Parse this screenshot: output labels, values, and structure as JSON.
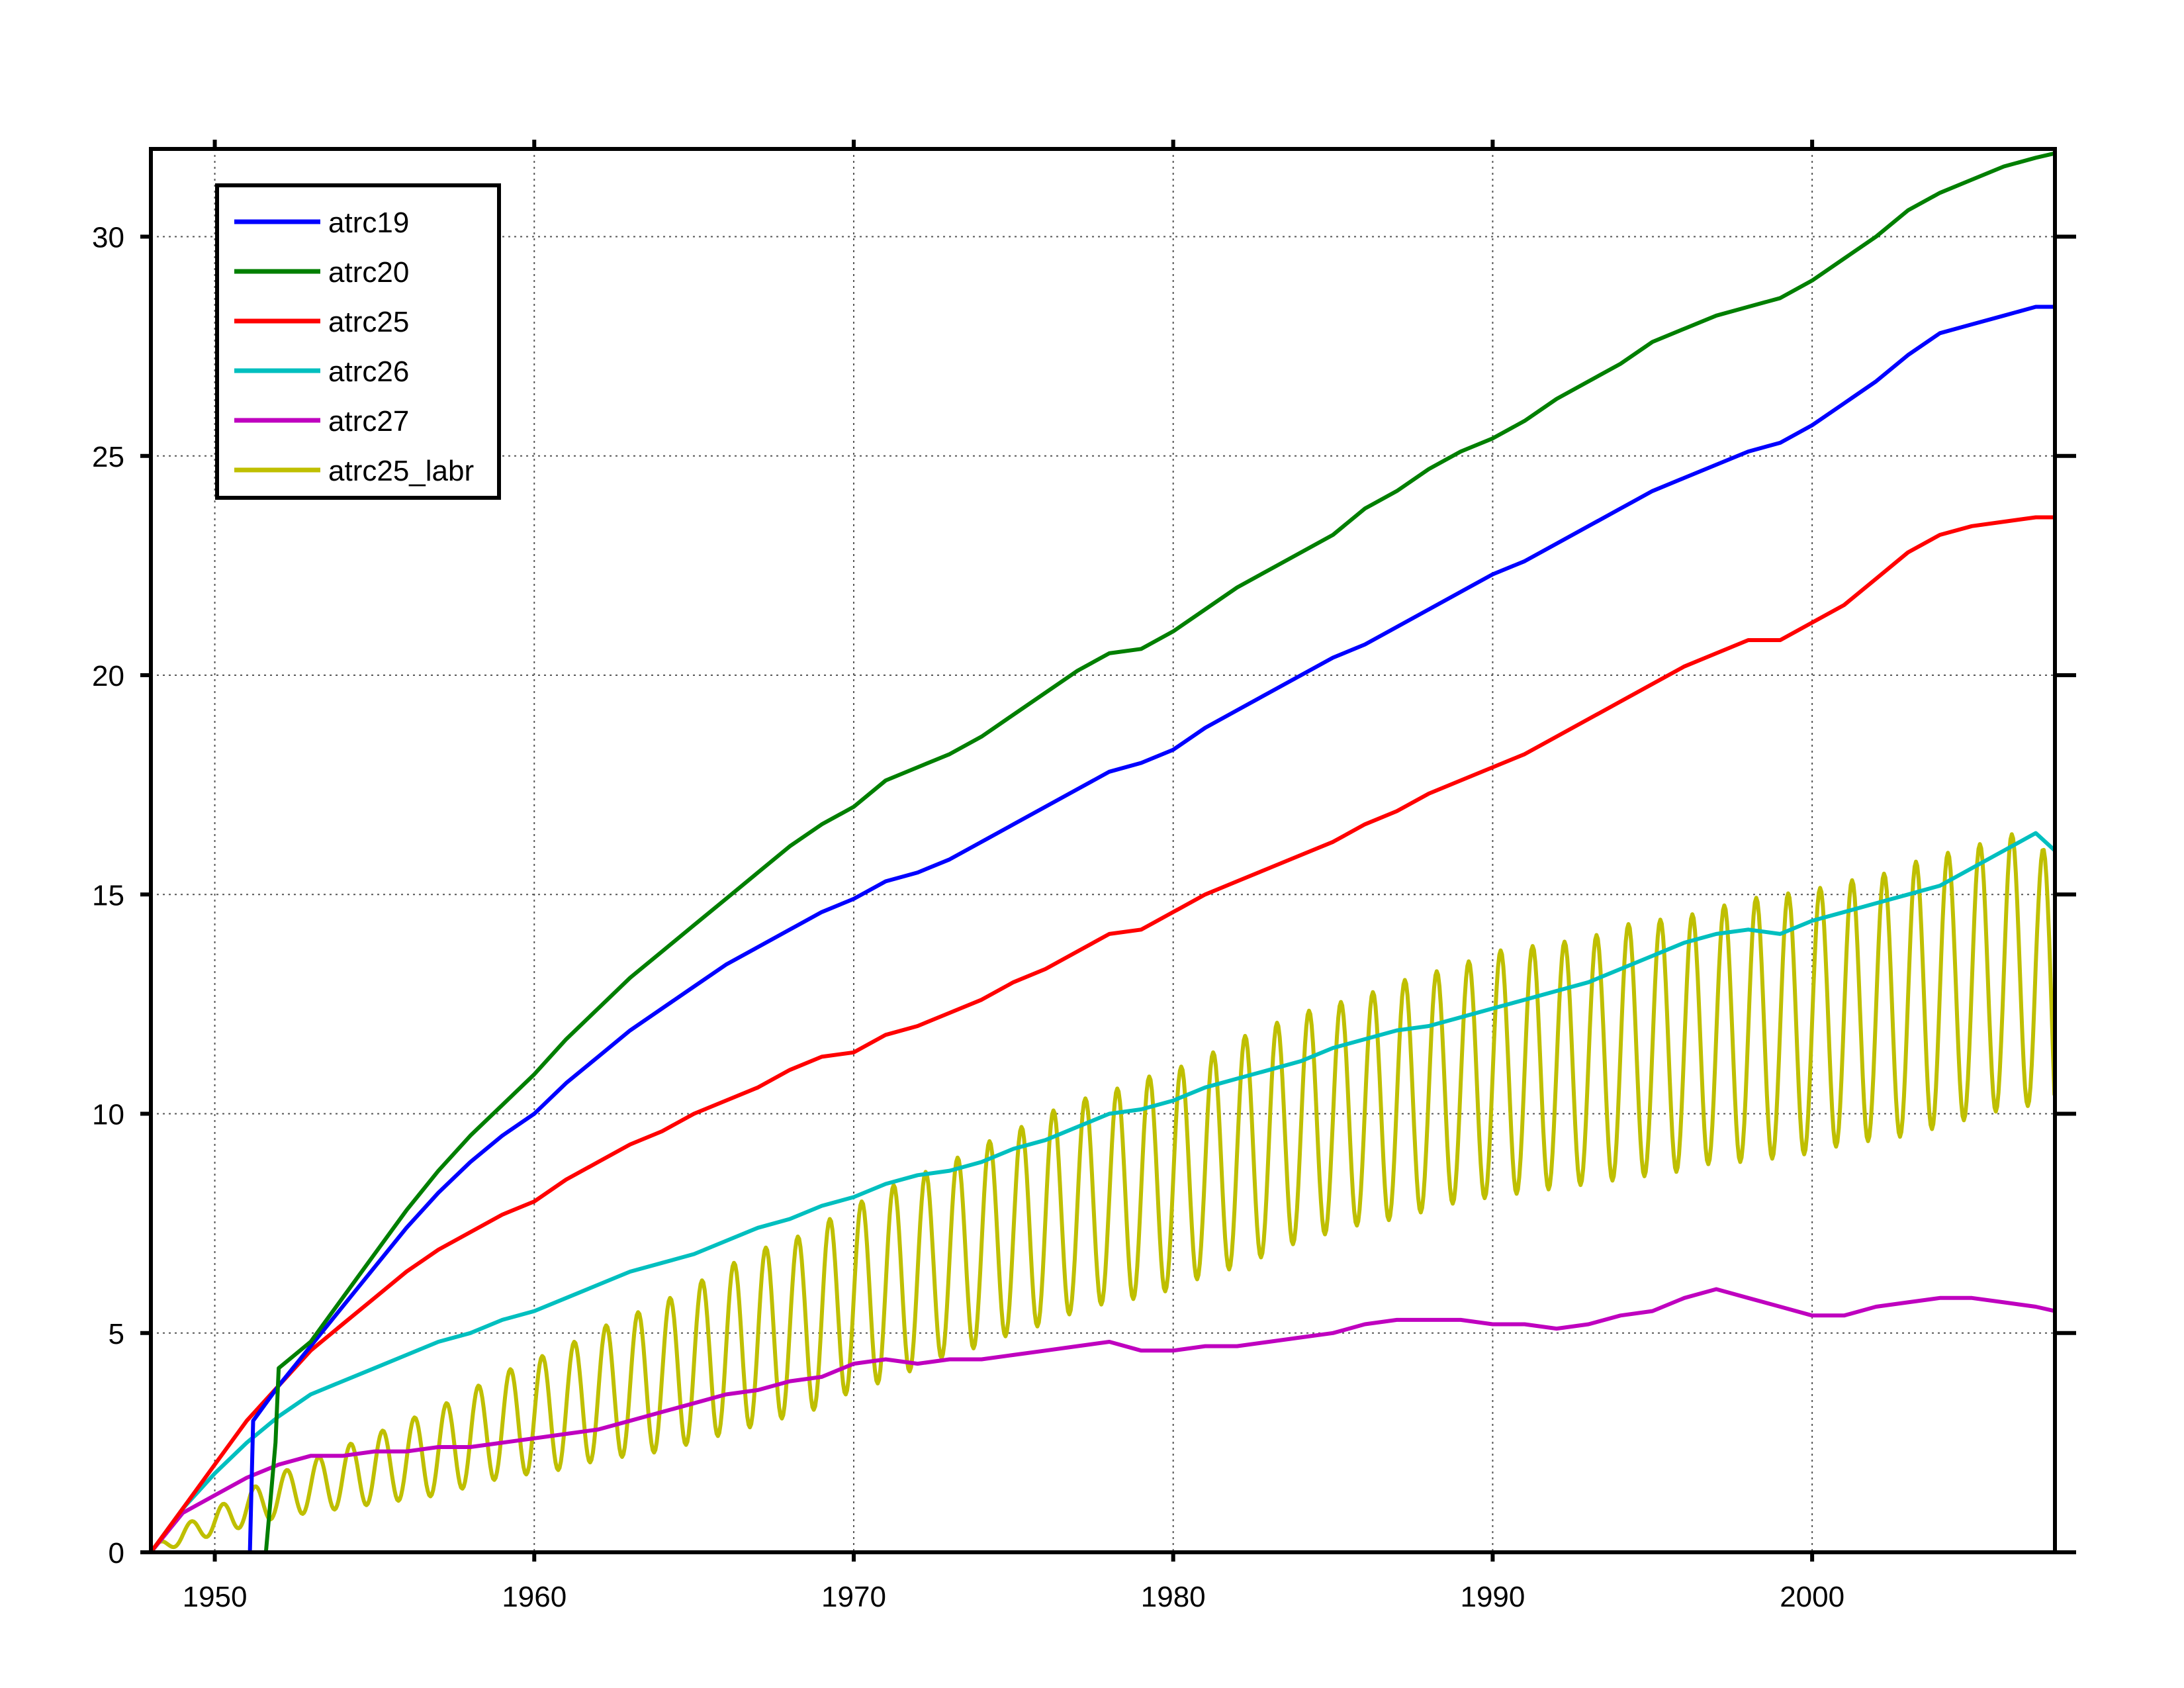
{
  "chart_data": {
    "type": "line",
    "title": "",
    "xlabel": "",
    "ylabel": "",
    "xlim": [
      1948,
      2007.6
    ],
    "ylim": [
      0,
      32
    ],
    "grid": true,
    "legend_position": "top-left",
    "x_ticks": [
      1950,
      1960,
      1970,
      1980,
      1990,
      2000
    ],
    "x_tick_labels": [
      "1950",
      "1960",
      "1970",
      "1980",
      "1990",
      "2000"
    ],
    "y_ticks": [
      0,
      5,
      10,
      15,
      20,
      25,
      30
    ],
    "y_tick_labels": [
      "0",
      "5",
      "10",
      "15",
      "20",
      "25",
      "30"
    ],
    "series": [
      {
        "name": "atrc19",
        "color": "#0000ff",
        "x": [
          1951.1,
          1951.2,
          1952,
          1953,
          1954,
          1955,
          1956,
          1957,
          1958,
          1959,
          1960,
          1961,
          1962,
          1963,
          1964,
          1965,
          1966,
          1967,
          1968,
          1969,
          1970,
          1971,
          1972,
          1973,
          1974,
          1975,
          1976,
          1977,
          1978,
          1979,
          1980,
          1981,
          1982,
          1983,
          1984,
          1985,
          1986,
          1987,
          1988,
          1989,
          1990,
          1991,
          1992,
          1993,
          1994,
          1995,
          1996,
          1997,
          1998,
          1999,
          2000,
          2001,
          2002,
          2003,
          2004,
          2005,
          2006,
          2007,
          2007.6
        ],
        "y": [
          0,
          3.0,
          3.8,
          4.7,
          5.6,
          6.5,
          7.4,
          8.2,
          8.9,
          9.5,
          10.0,
          10.7,
          11.3,
          11.9,
          12.4,
          12.9,
          13.4,
          13.8,
          14.2,
          14.6,
          14.9,
          15.3,
          15.5,
          15.8,
          16.2,
          16.6,
          17.0,
          17.4,
          17.8,
          18.0,
          18.3,
          18.8,
          19.2,
          19.6,
          20.0,
          20.4,
          20.7,
          21.1,
          21.5,
          21.9,
          22.3,
          22.6,
          23.0,
          23.4,
          23.8,
          24.2,
          24.5,
          24.8,
          25.1,
          25.3,
          25.7,
          26.2,
          26.7,
          27.3,
          27.8,
          28.0,
          28.2,
          28.4,
          28.4
        ]
      },
      {
        "name": "atrc20",
        "color": "#007f00",
        "x": [
          1951.6,
          1951.9,
          1952,
          1953,
          1954,
          1955,
          1956,
          1957,
          1958,
          1959,
          1960,
          1961,
          1962,
          1963,
          1964,
          1965,
          1966,
          1967,
          1968,
          1969,
          1970,
          1971,
          1972,
          1973,
          1974,
          1975,
          1976,
          1977,
          1978,
          1979,
          1980,
          1981,
          1982,
          1983,
          1984,
          1985,
          1986,
          1987,
          1988,
          1989,
          1990,
          1991,
          1992,
          1993,
          1994,
          1995,
          1996,
          1997,
          1998,
          1999,
          2000,
          2001,
          2002,
          2003,
          2004,
          2005,
          2006,
          2007,
          2007.6
        ],
        "y": [
          0,
          2.5,
          4.2,
          4.8,
          5.8,
          6.8,
          7.8,
          8.7,
          9.5,
          10.2,
          10.9,
          11.7,
          12.4,
          13.1,
          13.7,
          14.3,
          14.9,
          15.5,
          16.1,
          16.6,
          17.0,
          17.6,
          17.9,
          18.2,
          18.6,
          19.1,
          19.6,
          20.1,
          20.5,
          20.6,
          21.0,
          21.5,
          22.0,
          22.4,
          22.8,
          23.2,
          23.8,
          24.2,
          24.7,
          25.1,
          25.4,
          25.8,
          26.3,
          26.7,
          27.1,
          27.6,
          27.9,
          28.2,
          28.4,
          28.6,
          29.0,
          29.5,
          30.0,
          30.6,
          31.0,
          31.3,
          31.6,
          31.8,
          31.9
        ]
      },
      {
        "name": "atrc25",
        "color": "#ff0000",
        "x": [
          1948,
          1949,
          1950,
          1951,
          1952,
          1953,
          1954,
          1955,
          1956,
          1957,
          1958,
          1959,
          1960,
          1961,
          1962,
          1963,
          1964,
          1965,
          1966,
          1967,
          1968,
          1969,
          1970,
          1971,
          1972,
          1973,
          1974,
          1975,
          1976,
          1977,
          1978,
          1979,
          1980,
          1981,
          1982,
          1983,
          1984,
          1985,
          1986,
          1987,
          1988,
          1989,
          1990,
          1991,
          1992,
          1993,
          1994,
          1995,
          1996,
          1997,
          1998,
          1999,
          2000,
          2001,
          2002,
          2003,
          2004,
          2005,
          2006,
          2007,
          2007.6
        ],
        "y": [
          0,
          1.0,
          2.0,
          3.0,
          3.8,
          4.6,
          5.2,
          5.8,
          6.4,
          6.9,
          7.3,
          7.7,
          8.0,
          8.5,
          8.9,
          9.3,
          9.6,
          10.0,
          10.3,
          10.6,
          11.0,
          11.3,
          11.4,
          11.8,
          12.0,
          12.3,
          12.6,
          13.0,
          13.3,
          13.7,
          14.1,
          14.2,
          14.6,
          15.0,
          15.3,
          15.6,
          15.9,
          16.2,
          16.6,
          16.9,
          17.3,
          17.6,
          17.9,
          18.2,
          18.6,
          19.0,
          19.4,
          19.8,
          20.2,
          20.5,
          20.8,
          20.8,
          21.2,
          21.6,
          22.2,
          22.8,
          23.2,
          23.4,
          23.5,
          23.6,
          23.6
        ]
      },
      {
        "name": "atrc26",
        "color": "#00bfbf",
        "x": [
          1948,
          1949,
          1950,
          1951,
          1952,
          1953,
          1954,
          1955,
          1956,
          1957,
          1958,
          1959,
          1960,
          1961,
          1962,
          1963,
          1964,
          1965,
          1966,
          1967,
          1968,
          1969,
          1970,
          1971,
          1972,
          1973,
          1974,
          1975,
          1976,
          1977,
          1978,
          1979,
          1980,
          1981,
          1982,
          1983,
          1984,
          1985,
          1986,
          1987,
          1988,
          1989,
          1990,
          1991,
          1992,
          1993,
          1994,
          1995,
          1996,
          1997,
          1998,
          1999,
          2000,
          2001,
          2002,
          2003,
          2004,
          2005,
          2006,
          2007,
          2007.6
        ],
        "y": [
          0,
          1.0,
          1.8,
          2.5,
          3.1,
          3.6,
          3.9,
          4.2,
          4.5,
          4.8,
          5.0,
          5.3,
          5.5,
          5.8,
          6.1,
          6.4,
          6.6,
          6.8,
          7.1,
          7.4,
          7.6,
          7.9,
          8.1,
          8.4,
          8.6,
          8.7,
          8.9,
          9.2,
          9.4,
          9.7,
          10.0,
          10.1,
          10.3,
          10.6,
          10.8,
          11.0,
          11.2,
          11.5,
          11.7,
          11.9,
          12.0,
          12.2,
          12.4,
          12.6,
          12.8,
          13.0,
          13.3,
          13.6,
          13.9,
          14.1,
          14.2,
          14.1,
          14.4,
          14.6,
          14.8,
          15.0,
          15.2,
          15.6,
          16.0,
          16.4,
          16.0
        ]
      },
      {
        "name": "atrc27",
        "color": "#bf00bf",
        "x": [
          1948,
          1949,
          1950,
          1951,
          1952,
          1953,
          1954,
          1955,
          1956,
          1957,
          1958,
          1959,
          1960,
          1961,
          1962,
          1963,
          1964,
          1965,
          1966,
          1967,
          1968,
          1969,
          1970,
          1971,
          1972,
          1973,
          1974,
          1975,
          1976,
          1977,
          1978,
          1979,
          1980,
          1981,
          1982,
          1983,
          1984,
          1985,
          1986,
          1987,
          1988,
          1989,
          1990,
          1991,
          1992,
          1993,
          1994,
          1995,
          1996,
          1997,
          1998,
          1999,
          2000,
          2001,
          2002,
          2003,
          2004,
          2005,
          2006,
          2007,
          2007.6
        ],
        "y": [
          0,
          0.9,
          1.3,
          1.7,
          2.0,
          2.2,
          2.2,
          2.3,
          2.3,
          2.4,
          2.4,
          2.5,
          2.6,
          2.7,
          2.8,
          3.0,
          3.2,
          3.4,
          3.6,
          3.7,
          3.9,
          4.0,
          4.3,
          4.4,
          4.3,
          4.4,
          4.4,
          4.5,
          4.6,
          4.7,
          4.8,
          4.6,
          4.6,
          4.7,
          4.7,
          4.8,
          4.9,
          5.0,
          5.2,
          5.3,
          5.3,
          5.3,
          5.2,
          5.2,
          5.1,
          5.2,
          5.4,
          5.5,
          5.8,
          6.0,
          5.8,
          5.6,
          5.4,
          5.4,
          5.6,
          5.7,
          5.8,
          5.8,
          5.7,
          5.6,
          5.5
        ]
      },
      {
        "name": "atrc25_labr",
        "color": "#bfbf00",
        "x": [
          1948,
          1949,
          1950,
          1951,
          1952,
          1953,
          1954,
          1955,
          1956,
          1957,
          1958,
          1959,
          1960,
          1961,
          1962,
          1963,
          1964,
          1965,
          1966,
          1967,
          1968,
          1969,
          1970,
          1971,
          1972,
          1973,
          1974,
          1975,
          1976,
          1977,
          1978,
          1979,
          1980,
          1981,
          1982,
          1983,
          1984,
          1985,
          1986,
          1987,
          1988,
          1989,
          1990,
          1991,
          1992,
          1993,
          1994,
          1995,
          1996,
          1997,
          1998,
          1999,
          2000,
          2001,
          2002,
          2003,
          2004,
          2005,
          2006,
          2007,
          2007.6
        ],
        "y": [
          0,
          0.4,
          0.7,
          1.0,
          1.3,
          1.5,
          1.7,
          1.9,
          2.1,
          2.3,
          2.6,
          2.9,
          3.1,
          3.3,
          3.6,
          3.8,
          4.0,
          4.3,
          4.6,
          4.9,
          5.1,
          5.4,
          5.8,
          6.1,
          6.4,
          6.7,
          7.0,
          7.3,
          7.6,
          7.9,
          8.1,
          8.3,
          8.5,
          8.8,
          9.1,
          9.4,
          9.7,
          9.9,
          10.1,
          10.3,
          10.5,
          10.7,
          10.9,
          11.0,
          11.1,
          11.2,
          11.4,
          11.5,
          11.6,
          11.8,
          11.9,
          12.0,
          12.1,
          12.3,
          12.4,
          12.6,
          12.8,
          13.0,
          13.2,
          13.4,
          12.0
        ],
        "seasonal_amplitude": [
          0.1,
          0.2,
          0.3,
          0.4,
          0.5,
          0.6,
          0.7,
          0.8,
          0.9,
          1.0,
          1.1,
          1.2,
          1.3,
          1.4,
          1.5,
          1.6,
          1.7,
          1.8,
          1.9,
          2.0,
          2.0,
          2.1,
          2.1,
          2.2,
          2.2,
          2.2,
          2.3,
          2.3,
          2.4,
          2.4,
          2.4,
          2.5,
          2.5,
          2.5,
          2.6,
          2.6,
          2.6,
          2.6,
          2.6,
          2.7,
          2.7,
          2.7,
          2.8,
          2.8,
          2.8,
          2.8,
          2.9,
          2.9,
          2.9,
          2.9,
          3.0,
          3.0,
          3.0,
          3.0,
          3.0,
          3.1,
          3.1,
          3.1,
          3.1,
          3.2,
          3.2
        ]
      }
    ]
  }
}
